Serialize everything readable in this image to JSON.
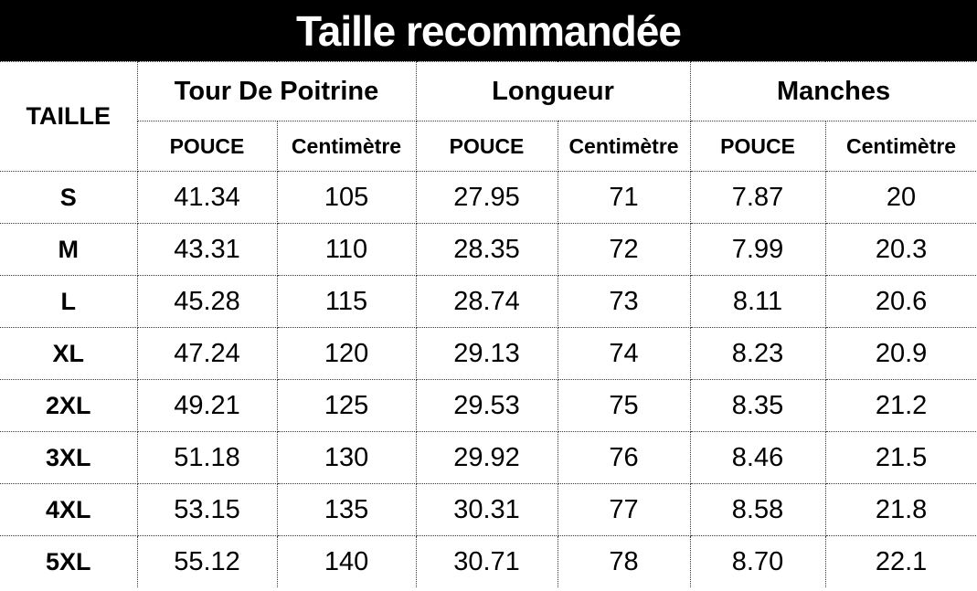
{
  "title": "Taille recommandée",
  "chart_data": {
    "type": "table",
    "title": "Taille recommandée",
    "header": {
      "size_column": "TAILLE",
      "groups": [
        "Tour De Poitrine",
        "Longueur",
        "Manches"
      ],
      "units": [
        "POUCE",
        "Centimètre"
      ]
    },
    "rows": [
      {
        "size": "S",
        "values": [
          "41.34",
          "105",
          "27.95",
          "71",
          "7.87",
          "20"
        ]
      },
      {
        "size": "M",
        "values": [
          "43.31",
          "110",
          "28.35",
          "72",
          "7.99",
          "20.3"
        ]
      },
      {
        "size": "L",
        "values": [
          "45.28",
          "115",
          "28.74",
          "73",
          "8.11",
          "20.6"
        ]
      },
      {
        "size": "XL",
        "values": [
          "47.24",
          "120",
          "29.13",
          "74",
          "8.23",
          "20.9"
        ]
      },
      {
        "size": "2XL",
        "values": [
          "49.21",
          "125",
          "29.53",
          "75",
          "8.35",
          "21.2"
        ]
      },
      {
        "size": "3XL",
        "values": [
          "51.18",
          "130",
          "29.92",
          "76",
          "8.46",
          "21.5"
        ]
      },
      {
        "size": "4XL",
        "values": [
          "53.15",
          "135",
          "30.31",
          "77",
          "8.58",
          "21.8"
        ]
      },
      {
        "size": "5XL",
        "values": [
          "55.12",
          "140",
          "30.71",
          "78",
          "8.70",
          "22.1"
        ]
      }
    ],
    "colors": {
      "title_background": "#000000",
      "title_text": "#ffffff",
      "cell_text": "#000000",
      "cell_background": "#ffffff",
      "border": "#3a3a3a"
    },
    "layout": {
      "border_style": "dotted",
      "grid": true
    }
  }
}
